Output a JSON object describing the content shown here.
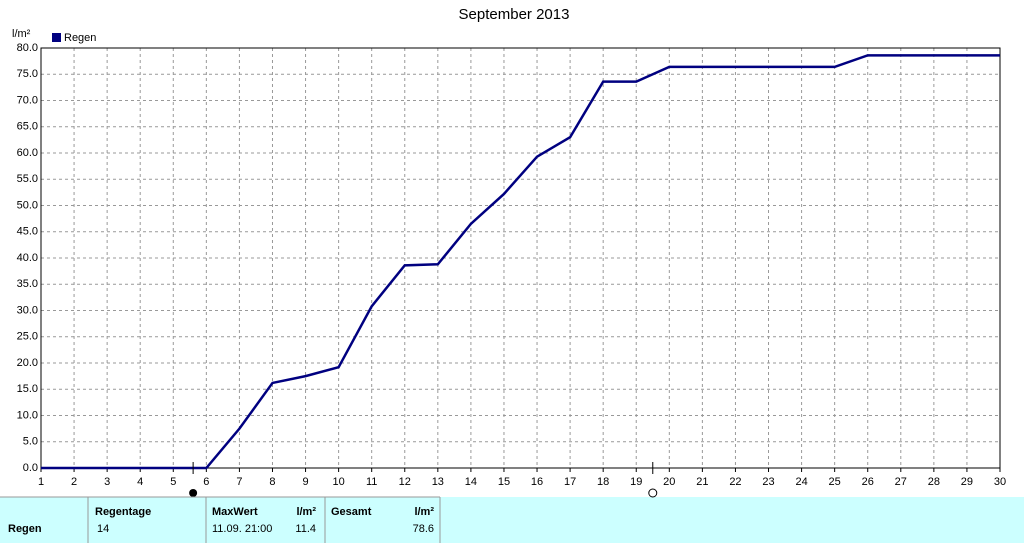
{
  "chart_data": {
    "type": "line",
    "title": "September 2013",
    "y_label": "l/m²",
    "x": [
      1,
      2,
      3,
      4,
      5,
      6,
      7,
      8,
      9,
      10,
      11,
      12,
      13,
      14,
      15,
      16,
      17,
      18,
      19,
      20,
      21,
      22,
      23,
      24,
      25,
      26,
      27,
      28,
      29,
      30
    ],
    "series": [
      {
        "name": "Regen",
        "color": "#000080",
        "values": [
          0,
          0,
          0,
          0,
          0,
          0,
          7.5,
          16.2,
          17.5,
          19.2,
          30.8,
          38.6,
          38.8,
          46.5,
          52.2,
          59.3,
          63.0,
          73.6,
          73.6,
          76.4,
          76.4,
          76.4,
          76.4,
          76.4,
          76.4,
          78.6,
          78.6,
          78.6,
          78.6,
          78.6
        ]
      }
    ],
    "xlim": [
      1,
      30
    ],
    "xticks": [
      1,
      2,
      3,
      4,
      5,
      6,
      7,
      8,
      9,
      10,
      11,
      12,
      13,
      14,
      15,
      16,
      17,
      18,
      19,
      20,
      21,
      22,
      23,
      24,
      25,
      26,
      27,
      28,
      29,
      30
    ],
    "ylim": [
      0,
      80
    ],
    "yticks": [
      {
        "value": 0,
        "label": "0.0"
      },
      {
        "value": 5,
        "label": "5.0"
      },
      {
        "value": 10,
        "label": "10.0"
      },
      {
        "value": 15,
        "label": "15.0"
      },
      {
        "value": 20,
        "label": "20.0"
      },
      {
        "value": 25,
        "label": "25.0"
      },
      {
        "value": 30,
        "label": "30.0"
      },
      {
        "value": 35,
        "label": "35.0"
      },
      {
        "value": 40,
        "label": "40.0"
      },
      {
        "value": 45,
        "label": "45.0"
      },
      {
        "value": 50,
        "label": "50.0"
      },
      {
        "value": 55,
        "label": "55.0"
      },
      {
        "value": 60,
        "label": "60.0"
      },
      {
        "value": 65,
        "label": "65.0"
      },
      {
        "value": 70,
        "label": "70.0"
      },
      {
        "value": 75,
        "label": "75.0"
      },
      {
        "value": 80,
        "label": "80.0"
      }
    ],
    "grid": true,
    "new_moon_x": 5.6,
    "full_moon_x": 19.5
  },
  "table": {
    "header": [
      "Regentage",
      "MaxWert",
      "l/m²",
      "Gesamt",
      "l/m²"
    ],
    "row": {
      "label": "Regen",
      "cells": [
        "14",
        "11.09. 21:00",
        "11.4",
        "78.6"
      ]
    }
  }
}
